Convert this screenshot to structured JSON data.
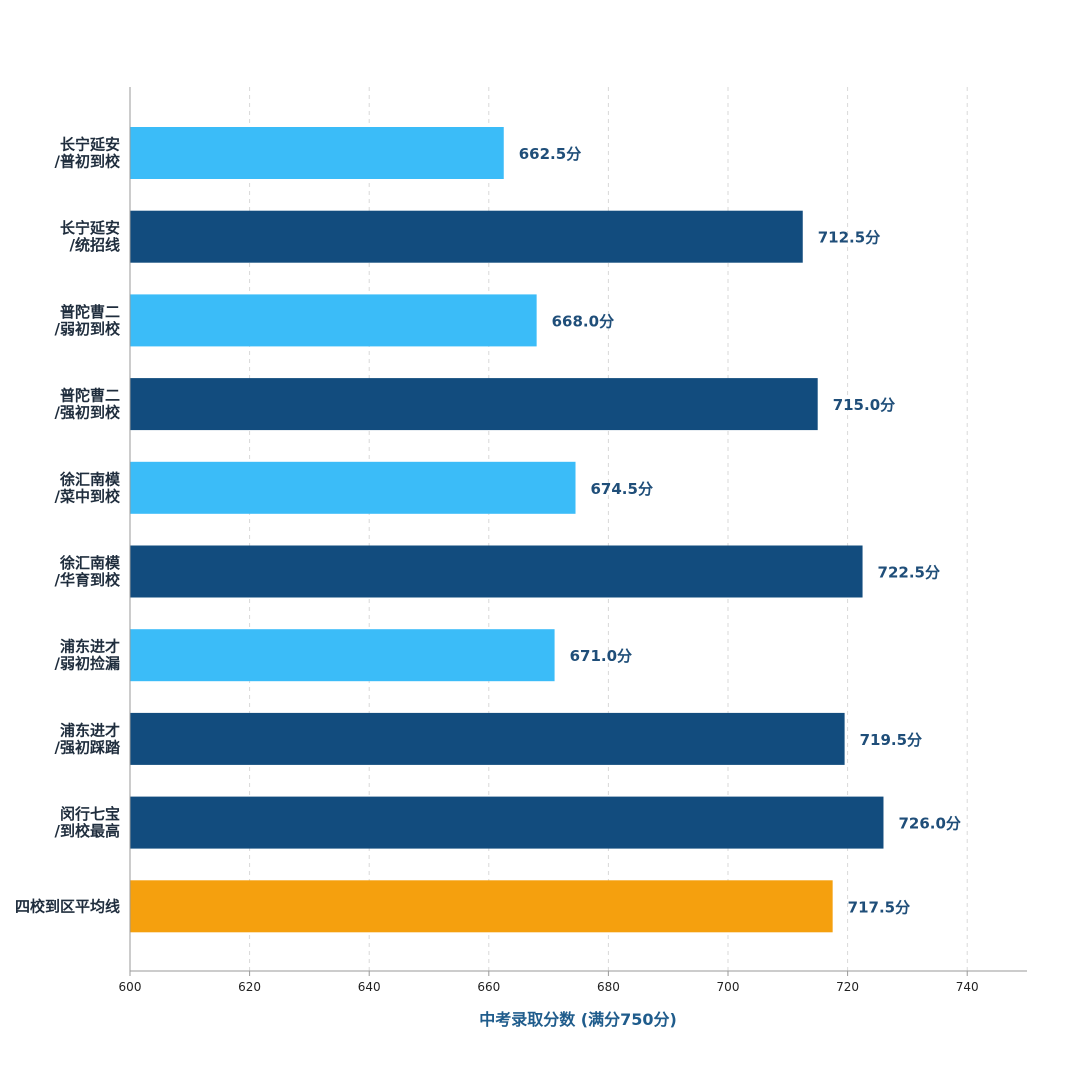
{
  "chart_data": {
    "type": "bar",
    "orientation": "horizontal",
    "categories": [
      [
        "长宁延安",
        "/普初到校"
      ],
      [
        "长宁延安",
        "/统招线"
      ],
      [
        "普陀曹二",
        "/弱初到校"
      ],
      [
        "普陀曹二",
        "/强初到校"
      ],
      [
        "徐汇南模",
        "/菜中到校"
      ],
      [
        "徐汇南模",
        "/华育到校"
      ],
      [
        "浦东进才",
        "/弱初捡漏"
      ],
      [
        "浦东进才",
        "/强初踩踏"
      ],
      [
        "闵行七宝",
        "/到校最高"
      ],
      [
        "四校到区平均线"
      ]
    ],
    "values": [
      662.5,
      712.5,
      668.0,
      715.0,
      674.5,
      722.5,
      671.0,
      719.5,
      726.0,
      717.5
    ],
    "value_labels": [
      "662.5分",
      "712.5分",
      "668.0分",
      "715.0分",
      "674.5分",
      "722.5分",
      "671.0分",
      "719.5分",
      "726.0分",
      "717.5分"
    ],
    "bar_colors": [
      "#3bbcf8",
      "#124c7e",
      "#3bbcf8",
      "#124c7e",
      "#3bbcf8",
      "#124c7e",
      "#3bbcf8",
      "#124c7e",
      "#124c7e",
      "#f5a00e"
    ],
    "xlabel": "中考录取分数 (满分750分)",
    "xlim": [
      600,
      750
    ],
    "xticks": [
      600,
      620,
      640,
      660,
      680,
      700,
      720,
      740
    ],
    "grid": "vertical-dashed",
    "legend": "none"
  }
}
